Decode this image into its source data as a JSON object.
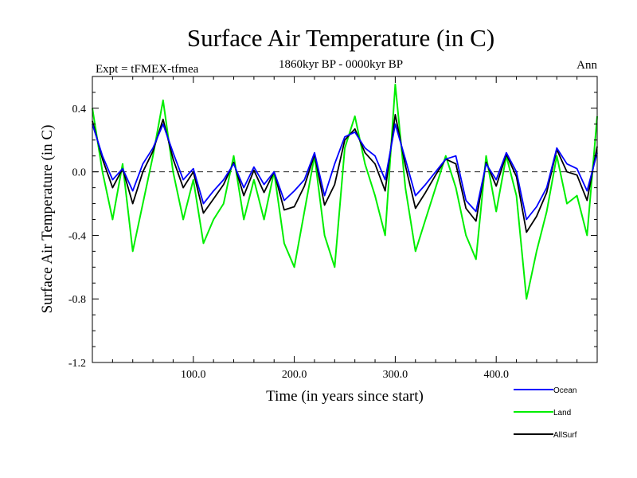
{
  "chart_data": {
    "type": "line",
    "title": "Surface Air Temperature (in C)",
    "subtitle": "1860kyr BP - 0000kyr BP",
    "left_label": "Expt = tFMEX-tfmea",
    "right_label": "Ann",
    "xlabel": "Time (in years since start)",
    "ylabel": "Surface Air Temperature (in C)",
    "xlim": [
      0,
      500
    ],
    "ylim": [
      -1.2,
      0.6
    ],
    "x_ticks": [
      100,
      200,
      300,
      400
    ],
    "x_tick_labels": [
      "100.0",
      "200.0",
      "300.0",
      "400.0"
    ],
    "y_ticks": [
      -1.2,
      -0.8,
      -0.4,
      0.0,
      0.4
    ],
    "y_tick_labels": [
      "-1.2",
      "-0.8",
      "-0.4",
      "0.0",
      "0.4"
    ],
    "zero_line": "dashed",
    "x": [
      0,
      10,
      20,
      30,
      40,
      50,
      60,
      70,
      80,
      90,
      100,
      110,
      120,
      130,
      140,
      150,
      160,
      170,
      180,
      190,
      200,
      210,
      220,
      230,
      240,
      250,
      260,
      270,
      280,
      290,
      300,
      310,
      320,
      330,
      340,
      350,
      360,
      370,
      380,
      390,
      400,
      410,
      420,
      430,
      440,
      450,
      460,
      470,
      480,
      490,
      500
    ],
    "series": [
      {
        "name": "Ocean",
        "color": "#0000ff",
        "values": [
          0.3,
          0.1,
          -0.05,
          0.02,
          -0.12,
          0.05,
          0.15,
          0.3,
          0.12,
          -0.05,
          0.02,
          -0.2,
          -0.12,
          -0.05,
          0.05,
          -0.1,
          0.03,
          -0.08,
          0.0,
          -0.18,
          -0.12,
          -0.05,
          0.12,
          -0.15,
          0.05,
          0.22,
          0.25,
          0.15,
          0.1,
          -0.05,
          0.3,
          0.08,
          -0.15,
          -0.08,
          0.0,
          0.08,
          0.1,
          -0.18,
          -0.25,
          0.05,
          -0.05,
          0.12,
          0.0,
          -0.3,
          -0.22,
          -0.1,
          0.15,
          0.05,
          0.02,
          -0.12,
          0.12
        ]
      },
      {
        "name": "Land",
        "color": "#00ee00",
        "values": [
          0.4,
          0.0,
          -0.3,
          0.05,
          -0.5,
          -0.2,
          0.1,
          0.45,
          0.0,
          -0.3,
          -0.05,
          -0.45,
          -0.3,
          -0.2,
          0.1,
          -0.3,
          -0.05,
          -0.3,
          0.0,
          -0.45,
          -0.6,
          -0.25,
          0.1,
          -0.4,
          -0.6,
          0.15,
          0.35,
          0.05,
          -0.15,
          -0.4,
          0.55,
          -0.1,
          -0.5,
          -0.3,
          -0.1,
          0.1,
          -0.1,
          -0.4,
          -0.55,
          0.1,
          -0.25,
          0.1,
          -0.15,
          -0.8,
          -0.5,
          -0.25,
          0.1,
          -0.2,
          -0.15,
          -0.4,
          0.35
        ]
      },
      {
        "name": "AllSurf",
        "color": "#000000",
        "values": [
          0.32,
          0.08,
          -0.1,
          0.02,
          -0.2,
          0.0,
          0.13,
          0.33,
          0.08,
          -0.1,
          0.0,
          -0.26,
          -0.17,
          -0.08,
          0.06,
          -0.15,
          0.01,
          -0.13,
          0.0,
          -0.24,
          -0.22,
          -0.09,
          0.11,
          -0.21,
          -0.08,
          0.2,
          0.27,
          0.12,
          0.05,
          -0.12,
          0.36,
          0.04,
          -0.23,
          -0.13,
          -0.02,
          0.08,
          0.05,
          -0.23,
          -0.31,
          0.06,
          -0.09,
          0.11,
          -0.03,
          -0.38,
          -0.28,
          -0.13,
          0.14,
          0.0,
          -0.02,
          -0.18,
          0.16
        ]
      }
    ],
    "legend": {
      "placement": "bottom-right",
      "labels": [
        "Ocean",
        "Land",
        "AllSurf"
      ]
    }
  }
}
